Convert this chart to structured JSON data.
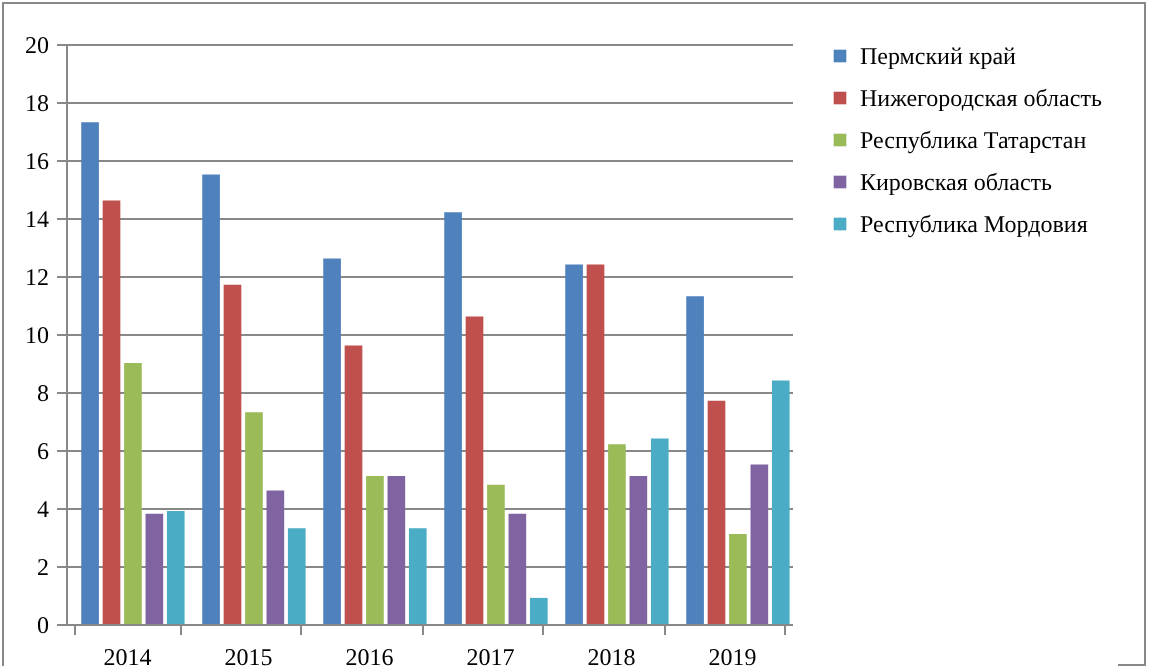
{
  "chart_data": {
    "type": "bar",
    "categories": [
      "2014",
      "2015",
      "2016",
      "2017",
      "2018",
      "2019"
    ],
    "series": [
      {
        "name": "Пермский край",
        "color": "#4f81bd",
        "values": [
          17.3,
          15.5,
          12.6,
          14.2,
          12.4,
          11.3
        ]
      },
      {
        "name": "Нижегородская область",
        "color": "#c0504d",
        "values": [
          14.6,
          11.7,
          9.6,
          10.6,
          12.4,
          7.7
        ]
      },
      {
        "name": "Республика Татарстан",
        "color": "#9bbb59",
        "values": [
          9.0,
          7.3,
          5.1,
          4.8,
          6.2,
          3.1
        ]
      },
      {
        "name": "Кировская область",
        "color": "#8064a2",
        "values": [
          3.8,
          4.6,
          5.1,
          3.8,
          5.1,
          5.5
        ]
      },
      {
        "name": "Республика Мордовия",
        "color": "#4bacc6",
        "values": [
          3.9,
          3.3,
          3.3,
          0.9,
          6.4,
          8.4
        ]
      }
    ],
    "ylim": [
      0,
      20
    ],
    "yticks": [
      0,
      2,
      4,
      6,
      8,
      10,
      12,
      14,
      16,
      18,
      20
    ],
    "grid": "y",
    "legend": "right"
  }
}
